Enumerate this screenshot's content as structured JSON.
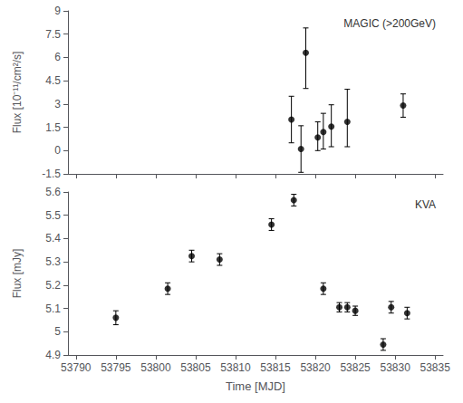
{
  "chart_data": [
    {
      "type": "scatter",
      "annotation": "MAGIC (>200GeV)",
      "ylabel": "Flux [10⁻¹¹/cm²/s]",
      "x": [
        53817.0,
        53818.2,
        53818.8,
        53820.3,
        53821.0,
        53822.0,
        53824.0,
        53831.0
      ],
      "values": [
        2.0,
        0.1,
        6.3,
        0.85,
        1.2,
        1.55,
        1.85,
        2.9
      ],
      "yerr_lo": [
        1.5,
        1.5,
        2.3,
        0.85,
        1.1,
        1.3,
        1.6,
        0.75
      ],
      "yerr_hi": [
        1.5,
        1.5,
        1.6,
        1.0,
        1.2,
        1.4,
        2.1,
        0.75
      ],
      "xlim": [
        53789,
        53836
      ],
      "xticks": [
        53790,
        53795,
        53800,
        53805,
        53810,
        53815,
        53820,
        53825,
        53830,
        53835
      ],
      "ylim": [
        -1.5,
        9.0
      ],
      "yticks": [
        -1.5,
        0,
        1.5,
        3,
        4.5,
        6,
        7.5,
        9
      ],
      "color": "black",
      "marker": "circle",
      "grid": false,
      "tick_labels": "y"
    },
    {
      "type": "scatter",
      "annotation": "KVA",
      "ylabel": "Flux [mJy]",
      "xlabel": "Time [MJD]",
      "x": [
        53795.0,
        53801.5,
        53804.5,
        53808.0,
        53814.5,
        53817.3,
        53821.0,
        53823.0,
        53824.0,
        53825.0,
        53828.5,
        53829.5,
        53831.5
      ],
      "values": [
        5.06,
        5.185,
        5.325,
        5.31,
        5.46,
        5.565,
        5.185,
        5.105,
        5.105,
        5.09,
        4.945,
        5.105,
        5.08
      ],
      "yerr": [
        0.03,
        0.025,
        0.025,
        0.025,
        0.025,
        0.025,
        0.025,
        0.02,
        0.02,
        0.02,
        0.025,
        0.025,
        0.025
      ],
      "xlim": [
        53789,
        53836
      ],
      "xticks": [
        53790,
        53795,
        53800,
        53805,
        53810,
        53815,
        53820,
        53825,
        53830,
        53835
      ],
      "ylim": [
        4.9,
        5.6
      ],
      "yticks": [
        4.9,
        5.0,
        5.1,
        5.2,
        5.3,
        5.4,
        5.5,
        5.6
      ],
      "color": "black",
      "marker": "circle",
      "grid": false
    }
  ]
}
